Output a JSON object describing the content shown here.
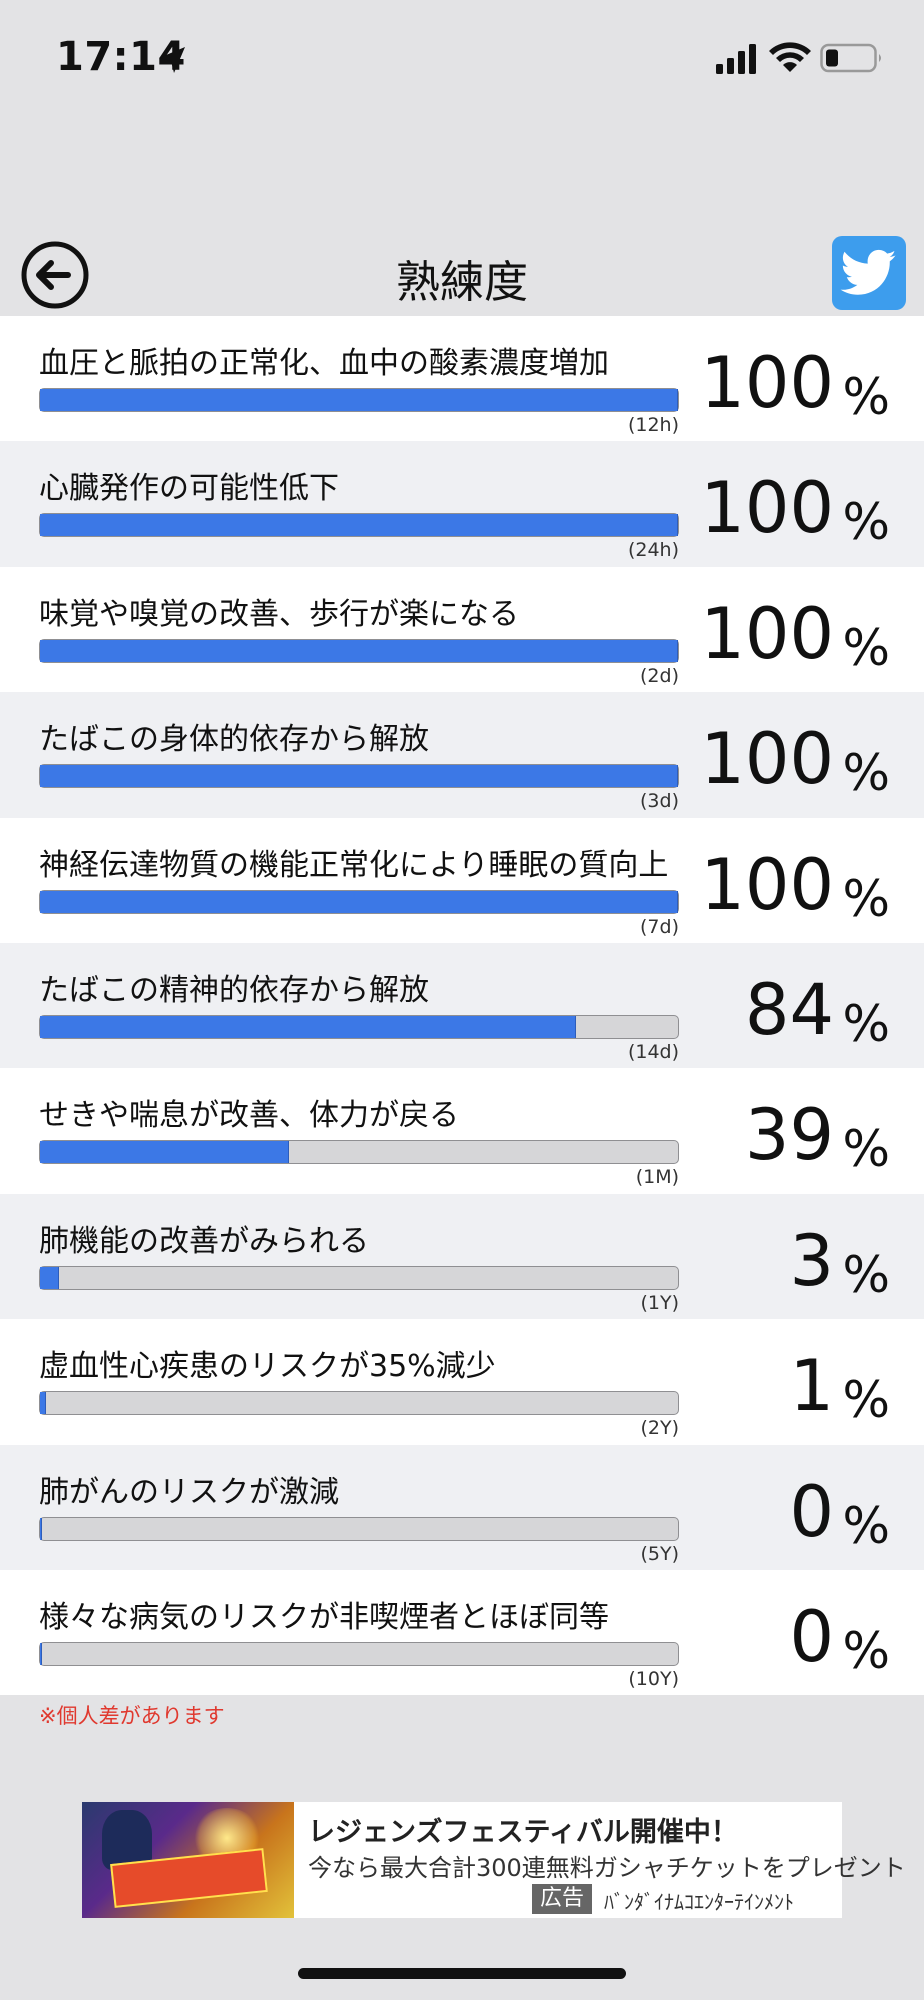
{
  "status_bar": {
    "time": "17:14",
    "icons": [
      "location-arrow-icon",
      "signal-icon",
      "wifi-icon",
      "battery-icon"
    ]
  },
  "header": {
    "title": "熟練度",
    "back_icon": "arrow-left-circle-icon",
    "share_icon": "twitter-bird-icon",
    "share_color": "#3d9ded"
  },
  "colors": {
    "progress_fill": "#3c78e6",
    "progress_track": "#d6d6d8",
    "disclaimer": "#e0392f"
  },
  "milestones": [
    {
      "label": "血圧と脈拍の正常化、血中の酸素濃度増加",
      "percent": 100,
      "period": "(12h)"
    },
    {
      "label": "心臓発作の可能性低下",
      "percent": 100,
      "period": "(24h)"
    },
    {
      "label": "味覚や嗅覚の改善、歩行が楽になる",
      "percent": 100,
      "period": "(2d)"
    },
    {
      "label": "たばこの身体的依存から解放",
      "percent": 100,
      "period": "(3d)"
    },
    {
      "label": "神経伝達物質の機能正常化により睡眠の質向上",
      "percent": 100,
      "period": "(7d)"
    },
    {
      "label": "たばこの精神的依存から解放",
      "percent": 84,
      "period": "(14d)"
    },
    {
      "label": "せきや喘息が改善、体力が戻る",
      "percent": 39,
      "period": "(1M)"
    },
    {
      "label": "肺機能の改善がみられる",
      "percent": 3,
      "period": "(1Y)"
    },
    {
      "label": "虚血性心疾患のリスクが35%減少",
      "percent": 1,
      "period": "(2Y)"
    },
    {
      "label": "肺がんのリスクが激減",
      "percent": 0,
      "period": "(5Y)"
    },
    {
      "label": "様々な病気のリスクが非喫煙者とほぼ同等",
      "percent": 0,
      "period": "(10Y)"
    }
  ],
  "percent_unit": "%",
  "disclaimer": "※個人差があります",
  "ad": {
    "title": "レジェンズフェスティバル開催中！",
    "description": "今なら最大合計300連無料ガシャチケットをプレゼント",
    "badge": "広告",
    "sponsor": "ﾊﾞﾝﾀﾞｲﾅﾑｺｴﾝﾀｰﾃｲﾝﾒﾝﾄ"
  }
}
